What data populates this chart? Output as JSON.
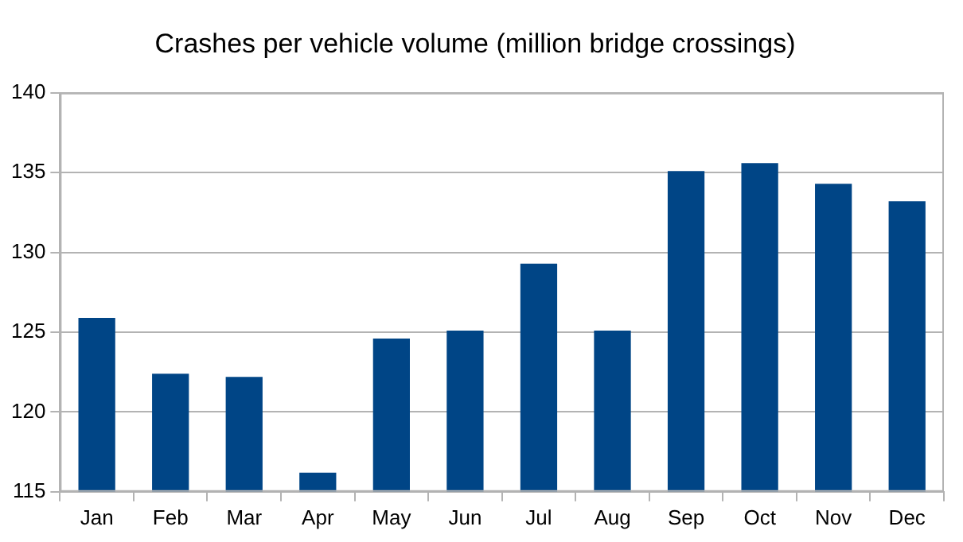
{
  "chart_data": {
    "type": "bar",
    "title": "Crashes per vehicle volume (million bridge crossings)",
    "categories": [
      "Jan",
      "Feb",
      "Mar",
      "Apr",
      "May",
      "Jun",
      "Jul",
      "Aug",
      "Sep",
      "Oct",
      "Nov",
      "Dec"
    ],
    "values": [
      125.9,
      122.4,
      122.2,
      116.2,
      124.6,
      125.1,
      129.3,
      125.1,
      135.1,
      135.6,
      134.3,
      133.2
    ],
    "color": "#004586",
    "ylim": [
      115,
      140
    ],
    "yticks": [
      115,
      120,
      125,
      130,
      135,
      140
    ],
    "grid": "y",
    "legend": false
  }
}
